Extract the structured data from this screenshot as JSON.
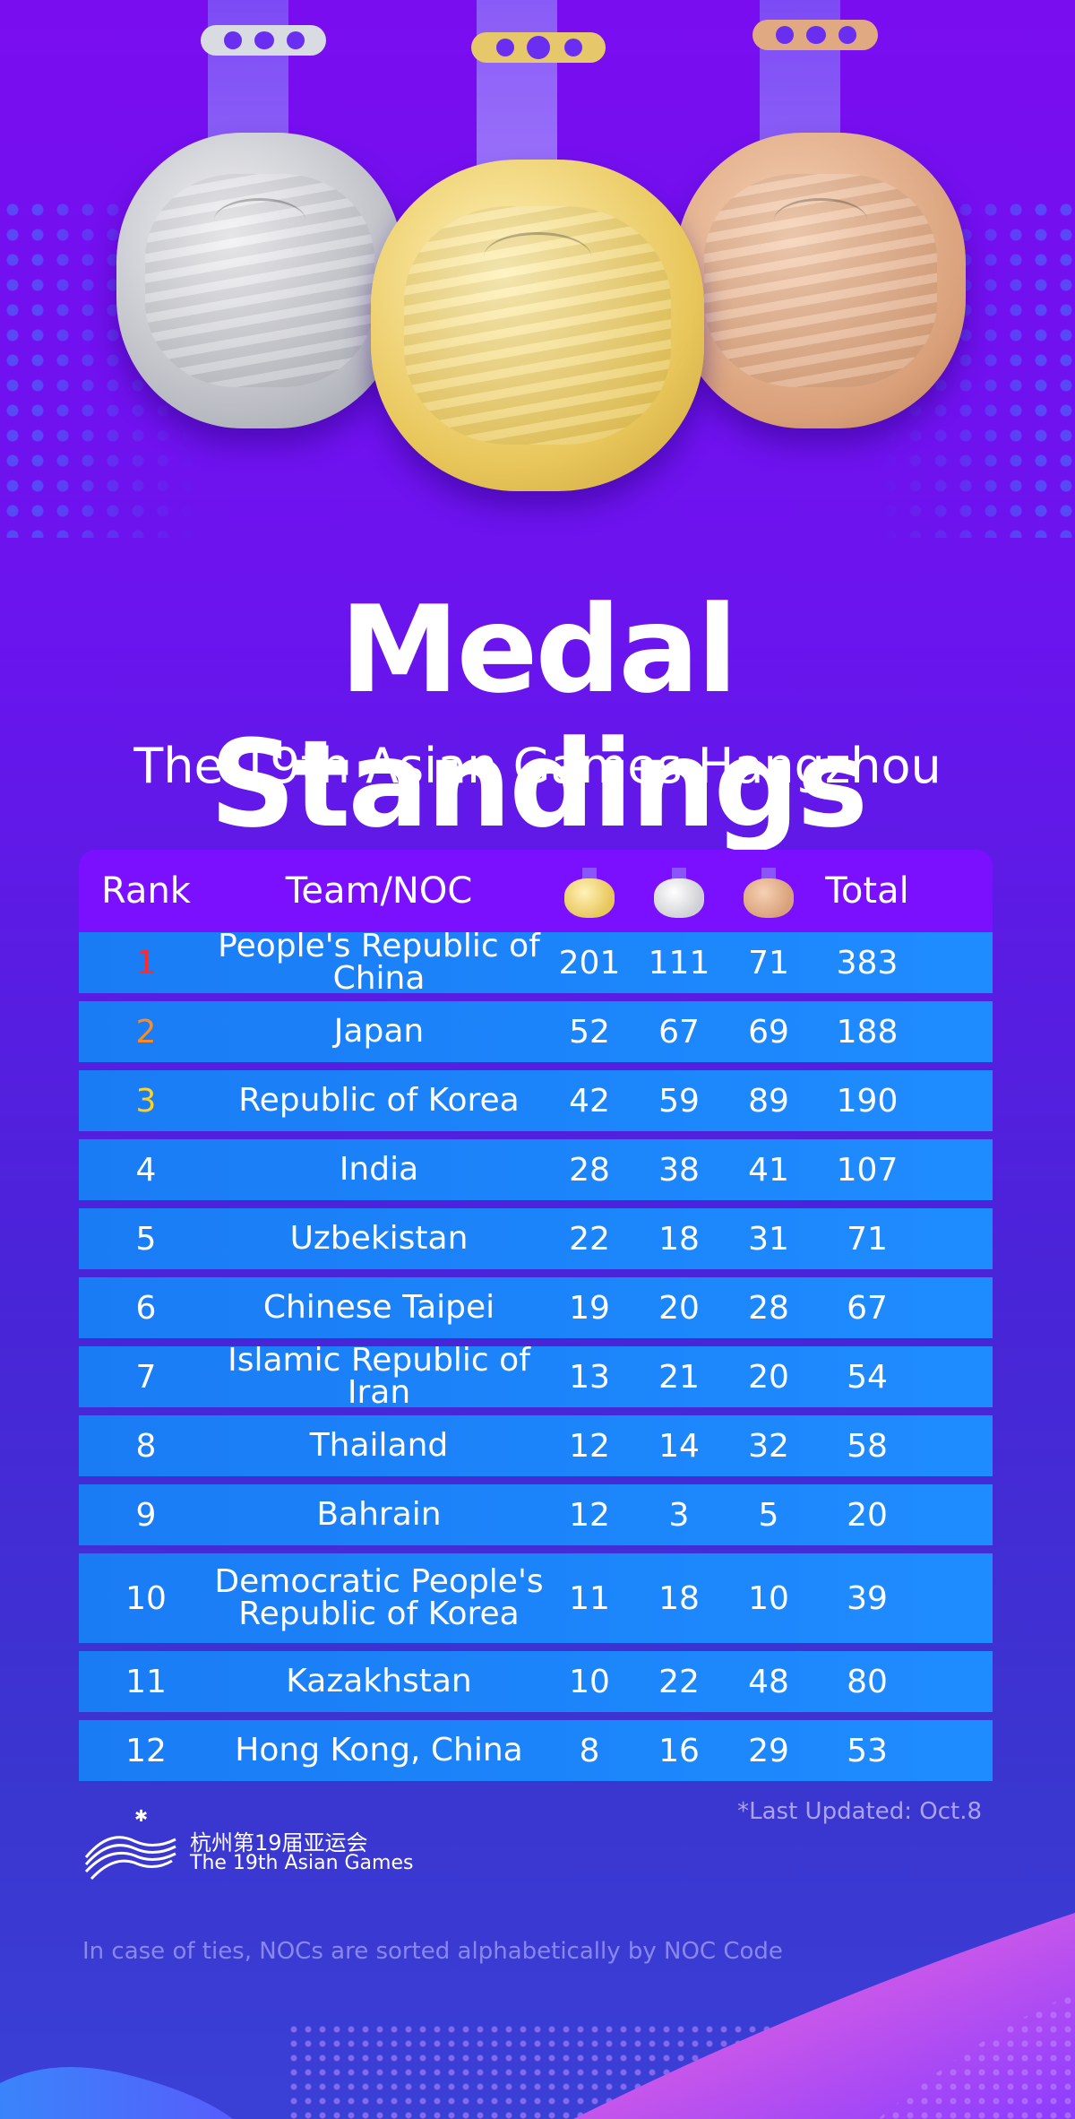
{
  "title": "Medal Standings",
  "subtitle": "The 19th Asian Games Hangzhou",
  "table": {
    "headers": {
      "rank": "Rank",
      "team": "Team/NOC",
      "total": "Total"
    },
    "rows": [
      {
        "rank": "1",
        "team": "People's Republic of China",
        "gold": "201",
        "silver": "111",
        "bronze": "71",
        "total": "383"
      },
      {
        "rank": "2",
        "team": "Japan",
        "gold": "52",
        "silver": "67",
        "bronze": "69",
        "total": "188"
      },
      {
        "rank": "3",
        "team": "Republic of Korea",
        "gold": "42",
        "silver": "59",
        "bronze": "89",
        "total": "190"
      },
      {
        "rank": "4",
        "team": "India",
        "gold": "28",
        "silver": "38",
        "bronze": "41",
        "total": "107"
      },
      {
        "rank": "5",
        "team": "Uzbekistan",
        "gold": "22",
        "silver": "18",
        "bronze": "31",
        "total": "71"
      },
      {
        "rank": "6",
        "team": "Chinese Taipei",
        "gold": "19",
        "silver": "20",
        "bronze": "28",
        "total": "67"
      },
      {
        "rank": "7",
        "team": "Islamic Republic of Iran",
        "gold": "13",
        "silver": "21",
        "bronze": "20",
        "total": "54"
      },
      {
        "rank": "8",
        "team": "Thailand",
        "gold": "12",
        "silver": "14",
        "bronze": "32",
        "total": "58"
      },
      {
        "rank": "9",
        "team": "Bahrain",
        "gold": "12",
        "silver": "3",
        "bronze": "5",
        "total": "20"
      },
      {
        "rank": "10",
        "team_line1": "Democratic People's",
        "team_line2": "Republic of Korea",
        "gold": "11",
        "silver": "18",
        "bronze": "10",
        "total": "39"
      },
      {
        "rank": "11",
        "team": "Kazakhstan",
        "gold": "10",
        "silver": "22",
        "bronze": "48",
        "total": "80"
      },
      {
        "rank": "12",
        "team": "Hong Kong, China",
        "gold": "8",
        "silver": "16",
        "bronze": "29",
        "total": "53"
      }
    ]
  },
  "last_updated": "*Last Updated: Oct.8",
  "logo": {
    "line1": "杭州第19届亚运会",
    "line2": "The 19th Asian Games"
  },
  "footnote": "In case of ties, NOCs are sorted alphabetically by NOC Code",
  "colors": {
    "gold": "#e8c65a",
    "silver": "#cfd0d4",
    "bronze": "#d9a07a",
    "rank1": "#ff2a2a",
    "rank2": "#ff8a1e",
    "rank3": "#ffd21e"
  }
}
